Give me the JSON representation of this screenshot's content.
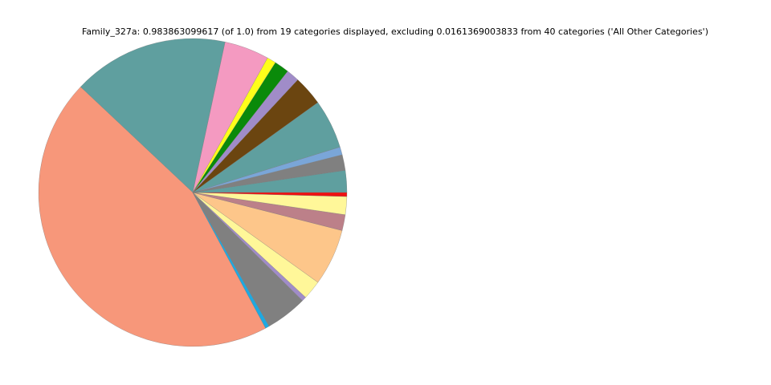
{
  "chart_data": {
    "type": "pie",
    "title": "Family_327a: 0.983863099617 (of 1.0) from 19 categories displayed, excluding 0.0161369003833 from 40 categories ('All Other Categories')",
    "values": [
      0.0227,
      0.0161,
      0.0082,
      0.0508,
      0.0309,
      0.0134,
      0.0153,
      0.0093,
      0.0462,
      0.1607,
      0.4414,
      0.0041,
      0.0429,
      0.0046,
      0.0197,
      0.0585,
      0.0164,
      0.0186,
      0.0041
    ],
    "colors": [
      "#5f9f9f",
      "#808080",
      "#7aa6d8",
      "#5f9f9f",
      "#6b4510",
      "#a08cc8",
      "#0a8a0a",
      "#ffff1a",
      "#f49ac1",
      "#5f9f9f",
      "#f7977a",
      "#1fa9e1",
      "#808080",
      "#a08cc8",
      "#fff799",
      "#fdc68a",
      "#bc8089",
      "#fff799",
      "#ee1111"
    ]
  }
}
